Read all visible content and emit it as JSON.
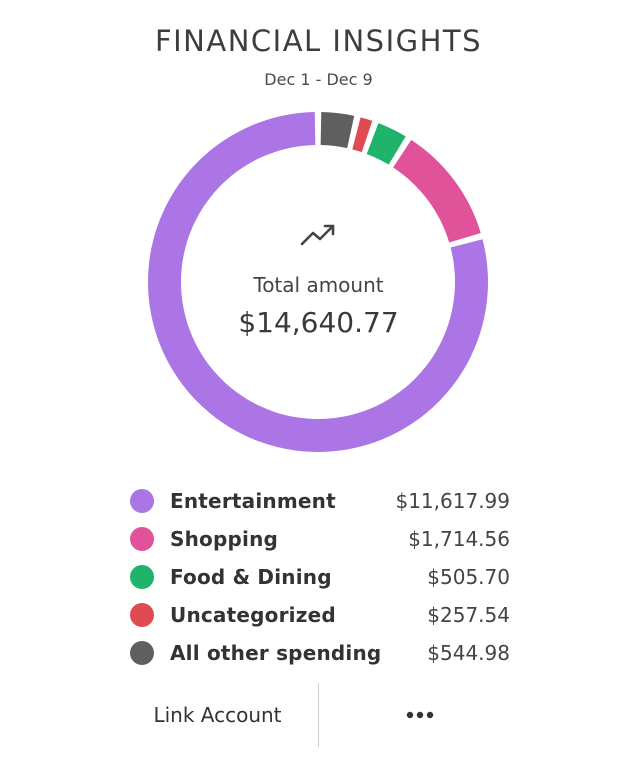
{
  "header": {
    "title": "FINANCIAL INSIGHTS",
    "date_range": "Dec 1 - Dec 9"
  },
  "summary": {
    "label": "Total amount",
    "value": "$14,640.77",
    "icon": "trending-up-icon"
  },
  "chart_data": {
    "type": "pie",
    "categories": [
      "Entertainment",
      "Shopping",
      "Food & Dining",
      "Uncategorized",
      "All other spending"
    ],
    "values": [
      11617.99,
      1714.56,
      505.7,
      257.54,
      544.98
    ],
    "labels": [
      "$11,617.99",
      "$1,714.56",
      "$505.70",
      "$257.54",
      "$544.98"
    ],
    "colors": [
      "#ab75e6",
      "#e0539a",
      "#1fb36b",
      "#e04b53",
      "#5f5f5f"
    ],
    "style": "donut",
    "legend": "bottom"
  },
  "footer": {
    "link_label": "Link Account",
    "more_icon": "more-horizontal-icon"
  }
}
